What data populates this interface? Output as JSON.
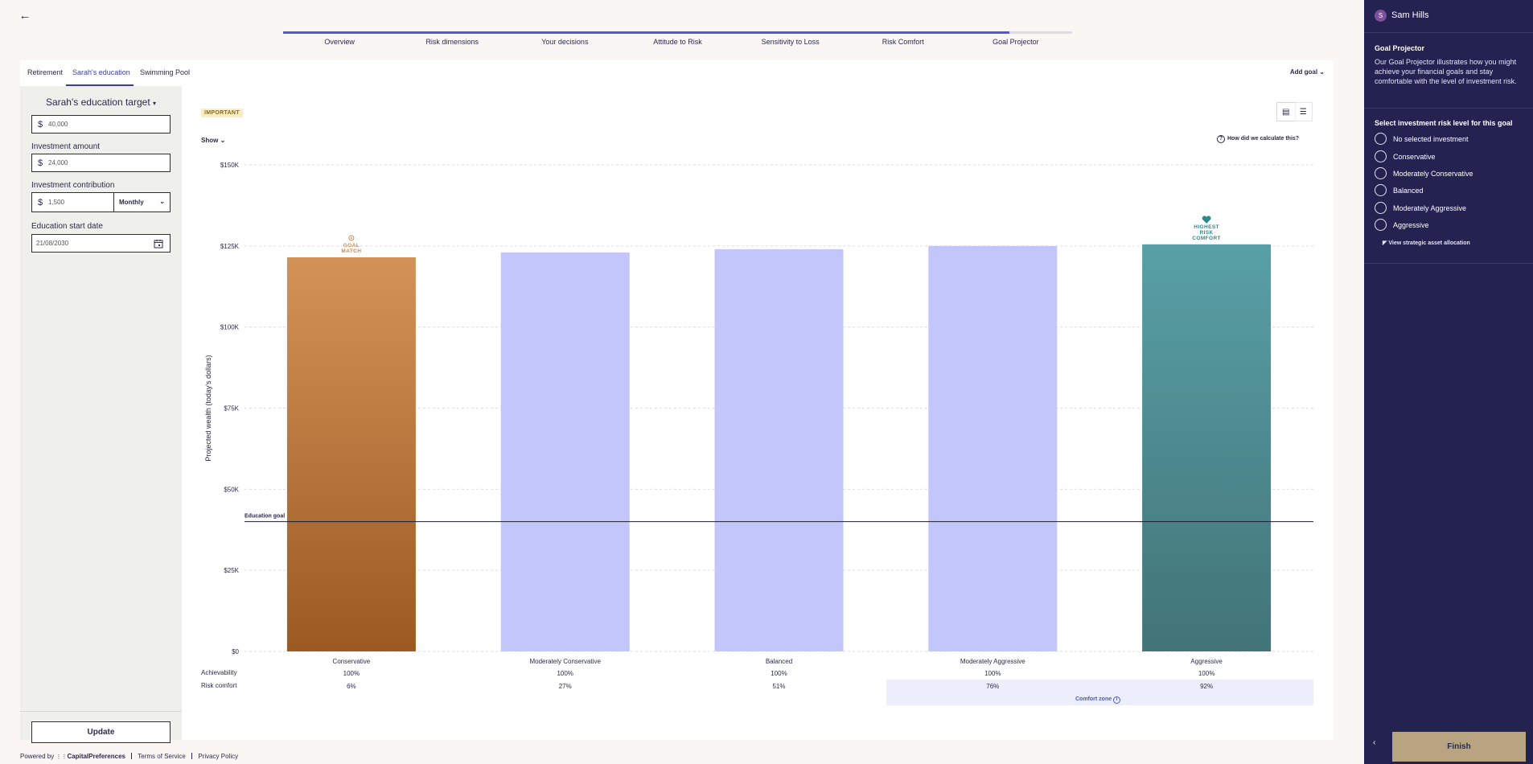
{
  "nav": {
    "back_icon": "back-arrow-icon",
    "steps": [
      "Overview",
      "Risk dimensions",
      "Your decisions",
      "Attitude to Risk",
      "Sensitivity to Loss",
      "Risk Comfort",
      "Goal Projector"
    ]
  },
  "goals": {
    "tabs": [
      "Retirement",
      "Sarah's education",
      "Swimming Pool"
    ],
    "add_goal": "Add goal"
  },
  "form": {
    "title": "Sarah's education target",
    "currency": "$",
    "target_value": "40,000",
    "investment_amount_label": "Investment amount",
    "investment_amount_value": "24,000",
    "investment_contribution_label": "Investment contribution",
    "investment_contribution_value": "1,500",
    "frequency": "Monthly",
    "start_date_label": "Education start date",
    "start_date_value": "21/08/2030",
    "update_label": "Update"
  },
  "chart_header": {
    "badge": "IMPORTANT",
    "show_label": "Show",
    "calc_link": "How did we calculate this?"
  },
  "chart_data": {
    "type": "bar",
    "ylabel": "Projected wealth (today's dollars)",
    "ylim": [
      0,
      150000
    ],
    "y_ticks": [
      "$0",
      "$25K",
      "$50K",
      "$75K",
      "$100K",
      "$125K",
      "$150K"
    ],
    "y_tick_values": [
      0,
      25000,
      50000,
      75000,
      100000,
      125000,
      150000
    ],
    "categories": [
      "Conservative",
      "Moderately Conservative",
      "Balanced",
      "Moderately Aggressive",
      "Aggressive"
    ],
    "values": [
      121500,
      123000,
      124000,
      125000,
      125500
    ],
    "bar_colors": [
      "#c27a3c",
      "#c3c6fa",
      "#c3c6fa",
      "#c3c6fa",
      "#4c9499"
    ],
    "goal_line": {
      "label": "Education goal",
      "value": 40000
    },
    "markers": [
      {
        "category": "Conservative",
        "text": "GOAL MATCH",
        "color": "#c98a4e"
      },
      {
        "category": "Aggressive",
        "text": "HIGHEST RISK COMFORT",
        "color": "#2a8a8e"
      }
    ],
    "grid": true
  },
  "table": {
    "achievability_label": "Achievability",
    "achievability": [
      "100%",
      "100%",
      "100%",
      "100%",
      "100%"
    ],
    "risk_comfort_label": "Risk comfort",
    "risk_comfort": [
      "6%",
      "27%",
      "51%",
      "76%",
      "92%"
    ],
    "comfort_zone": "Comfort zone"
  },
  "footer": {
    "powered_by": "Powered by",
    "brand": "CapitalPreferences",
    "terms": "Terms of Service",
    "privacy": "Privacy Policy"
  },
  "sidebar": {
    "avatar_initial": "S",
    "user_name": "Sam Hills",
    "title": "Goal Projector",
    "description": "Our Goal Projector illustrates how you might achieve your financial goals and stay comfortable with the level of investment risk.",
    "question": "Select investment risk level for this goal",
    "options": [
      "No selected investment",
      "Conservative",
      "Moderately Conservative",
      "Balanced",
      "Moderately Aggressive",
      "Aggressive"
    ],
    "saa_link": "View strategic asset allocation",
    "finish": "Finish"
  }
}
